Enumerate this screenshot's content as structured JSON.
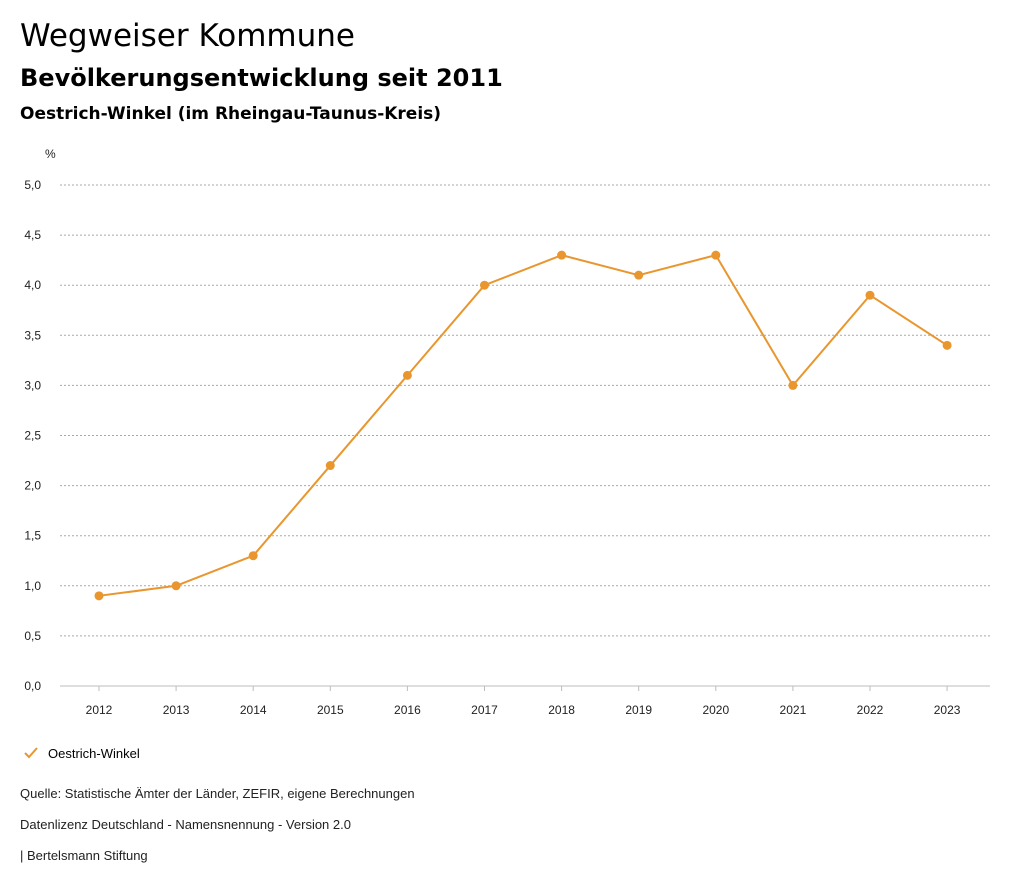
{
  "header": {
    "title": "Wegweiser Kommune",
    "subtitle": "Bevölkerungsentwicklung seit 2011",
    "region": "Oestrich-Winkel (im Rheingau-Taunus-Kreis)"
  },
  "chart_data": {
    "type": "line",
    "title": "Bevölkerungsentwicklung seit 2011",
    "ylabel": "%",
    "xlabel": "",
    "categories": [
      "2012",
      "2013",
      "2014",
      "2015",
      "2016",
      "2017",
      "2018",
      "2019",
      "2020",
      "2021",
      "2022",
      "2023"
    ],
    "series": [
      {
        "name": "Oestrich-Winkel",
        "values": [
          0.9,
          1.0,
          1.3,
          2.2,
          3.1,
          4.0,
          4.3,
          4.1,
          4.3,
          3.0,
          3.9,
          3.4
        ]
      }
    ],
    "ylim": [
      0,
      5
    ],
    "yticks": [
      "0,0",
      "0,5",
      "1,0",
      "1,5",
      "2,0",
      "2,5",
      "3,0",
      "3,5",
      "4,0",
      "4,5",
      "5,0"
    ],
    "grid": true,
    "legend_position": "bottom-left",
    "color": "#e9962e"
  },
  "legend": {
    "label": "Oestrich-Winkel"
  },
  "footer": {
    "source": "Quelle: Statistische Ämter der Länder, ZEFIR, eigene Berechnungen",
    "license": "Datenlizenz Deutschland - Namensnennung - Version 2.0",
    "credit": "| Bertelsmann Stiftung"
  }
}
